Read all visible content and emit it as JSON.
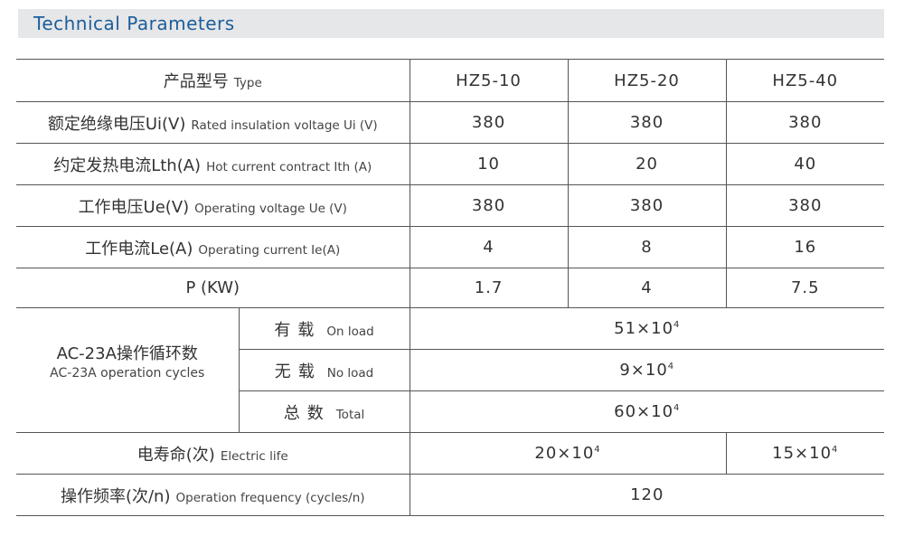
{
  "title": "Technical Parameters",
  "header": {
    "cn": "产品型号",
    "en": "Type",
    "models": [
      "HZ5-10",
      "HZ5-20",
      "HZ5-40"
    ]
  },
  "rows": [
    {
      "cn": "额定绝缘电压Ui(V)",
      "en": "Rated insulation voltage Ui (V)",
      "values": [
        "380",
        "380",
        "380"
      ]
    },
    {
      "cn": "约定发热电流Lth(A)",
      "en": "Hot current contract Ith (A)",
      "values": [
        "10",
        "20",
        "40"
      ]
    },
    {
      "cn": "工作电压Ue(V)",
      "en": "Operating voltage Ue (V)",
      "values": [
        "380",
        "380",
        "380"
      ]
    },
    {
      "cn": "工作电流Le(A)",
      "en": "Operating current Ie(A)",
      "values": [
        "4",
        "8",
        "16"
      ]
    },
    {
      "cn": "P (KW)",
      "values": [
        "1.7",
        "4",
        "7.5"
      ]
    }
  ],
  "cycles": {
    "cn": "AC-23A操作循环数",
    "en": "AC-23A operation cycles",
    "items": [
      {
        "cn": "有载",
        "en": "On load",
        "base": "51×10",
        "exp": "4"
      },
      {
        "cn": "无载",
        "en": "No load",
        "base": "9×10",
        "exp": "4"
      },
      {
        "cn": "总数",
        "en": "Total",
        "base": "60×10",
        "exp": "4"
      }
    ]
  },
  "electric_life": {
    "cn": "电寿命(次)",
    "en": "Electric life",
    "v1_base": "20×10",
    "v1_exp": "4",
    "v2_base": "15×10",
    "v2_exp": "4"
  },
  "frequency": {
    "cn": "操作频率(次/n)",
    "en": "Operation frequency (cycles/n)",
    "value": "120"
  }
}
